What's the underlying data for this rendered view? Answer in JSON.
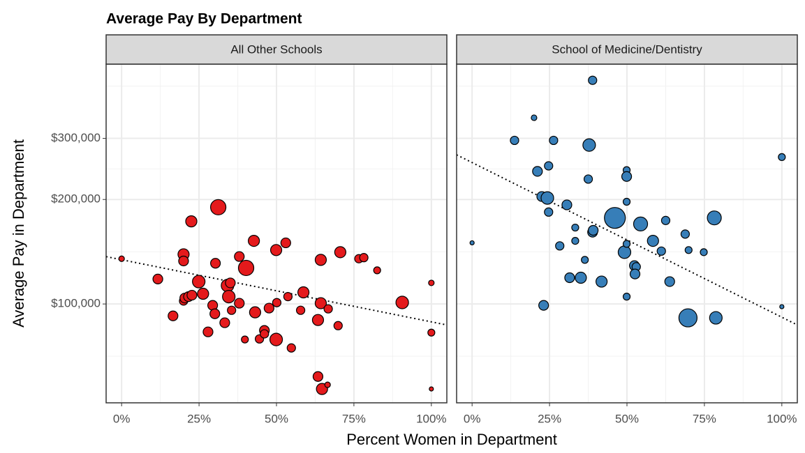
{
  "chart_data": {
    "type": "scatter",
    "title": "Average Pay By Department",
    "xlabel": "Percent Women in Department",
    "ylabel": "Average Pay in Department",
    "log_y": true,
    "grid": true,
    "xlim": [
      -5,
      105
    ],
    "ylim": [
      51900,
      491000
    ],
    "xticks": [
      {
        "value": 0,
        "label": "0%"
      },
      {
        "value": 25,
        "label": "25%"
      },
      {
        "value": 50,
        "label": "50%"
      },
      {
        "value": 75,
        "label": "75%"
      },
      {
        "value": 100,
        "label": "100%"
      }
    ],
    "xminor": [
      12.5,
      37.5,
      62.5,
      87.5
    ],
    "yticks": [
      {
        "value": 100000,
        "label": "$100,000"
      },
      {
        "value": 200000,
        "label": "$200,000"
      },
      {
        "value": 300000,
        "label": "$300,000"
      }
    ],
    "yminor": [
      70711,
      141421,
      244949,
      424264
    ],
    "facets": [
      {
        "title": "All Other Schools",
        "color": "#e41a1c",
        "x": [
          0,
          11.7,
          16.6,
          20,
          20,
          22.5,
          20,
          20.4,
          21.6,
          22.7,
          24.9,
          26.3,
          27.9,
          29.4,
          30.1,
          30.3,
          31.2,
          33.3,
          34.2,
          35.1,
          34.6,
          35.5,
          38,
          38,
          40.2,
          39.8,
          42.7,
          43.1,
          44.5,
          46.1,
          46.1,
          47.6,
          49.9,
          50.1,
          49.9,
          53,
          53.7,
          54.8,
          57.8,
          58.7,
          63.4,
          63.4,
          64.3,
          64.3,
          64.7,
          66.5,
          66.7,
          70.6,
          69.9,
          76.6,
          78.2,
          82.5,
          90.6,
          100,
          100,
          100
        ],
        "y": [
          135000,
          118000,
          92400,
          139000,
          133000,
          173000,
          102000,
          104000,
          105000,
          106000,
          116000,
          107000,
          83100,
          99100,
          93700,
          131000,
          190000,
          88300,
          113000,
          115000,
          105000,
          95900,
          100500,
          137000,
          127000,
          79000,
          152000,
          94600,
          79300,
          83900,
          82000,
          97300,
          143000,
          100900,
          79000,
          150000,
          105000,
          74700,
          95900,
          108000,
          61800,
          89900,
          134000,
          100500,
          56900,
          58500,
          96800,
          141000,
          86600,
          135000,
          136000,
          125000,
          101000,
          115000,
          82700,
          56900
        ],
        "sizes": [
          4,
          7,
          7,
          8,
          7,
          8,
          6,
          7,
          7,
          7,
          9,
          8,
          7,
          7,
          7,
          7,
          11,
          7,
          9,
          7,
          9,
          6,
          7,
          7,
          11,
          5,
          8,
          8,
          6,
          7,
          6,
          7,
          8,
          6,
          9,
          7,
          6,
          6,
          6,
          8,
          7,
          8,
          8,
          8,
          8,
          4,
          6,
          8,
          6,
          6,
          6,
          5,
          9,
          4,
          5,
          3
        ],
        "trend": {
          "x": [
            -5,
            105
          ],
          "y": [
            136900,
            87000
          ]
        }
      },
      {
        "title": "School of Medicine/Dentistry",
        "color": "#377eb8",
        "x": [
          0,
          13.7,
          20,
          21.1,
          22.5,
          23.1,
          24.3,
          24.7,
          24.7,
          26.3,
          28.3,
          30.6,
          31.5,
          33.3,
          33.3,
          35.1,
          36.4,
          37.5,
          37.8,
          38.9,
          38.9,
          39.1,
          41.8,
          46.1,
          49.2,
          49.9,
          49.9,
          49.9,
          49.9,
          49.9,
          52.4,
          53,
          52.6,
          54.4,
          58.4,
          61.1,
          63.8,
          62.5,
          68.8,
          69.9,
          74.8,
          78.2,
          69.7,
          78.7,
          100,
          100
        ],
        "y": [
          150000,
          296000,
          344000,
          241000,
          204000,
          99100,
          202000,
          250000,
          184000,
          296000,
          147000,
          193000,
          119000,
          166000,
          152000,
          119000,
          134000,
          229000,
          287000,
          441000,
          161000,
          163000,
          116000,
          177000,
          141000,
          243000,
          233000,
          197000,
          149000,
          105000,
          129000,
          128000,
          122000,
          170000,
          152000,
          142000,
          116000,
          174000,
          159000,
          143000,
          141000,
          177000,
          91200,
          91200,
          265000,
          98200
        ],
        "sizes": [
          3,
          6,
          4,
          7,
          7,
          7,
          9,
          6,
          6,
          6,
          6,
          7,
          7,
          5,
          5,
          8,
          5,
          6,
          9,
          6,
          7,
          7,
          8,
          15,
          9,
          5,
          7,
          5,
          5,
          5,
          7,
          6,
          7,
          10,
          8,
          6,
          7,
          6,
          6,
          5,
          5,
          10,
          13,
          9,
          5,
          3
        ],
        "trend": {
          "x": [
            -5,
            105
          ],
          "y": [
            269000,
            87000
          ]
        }
      }
    ]
  }
}
